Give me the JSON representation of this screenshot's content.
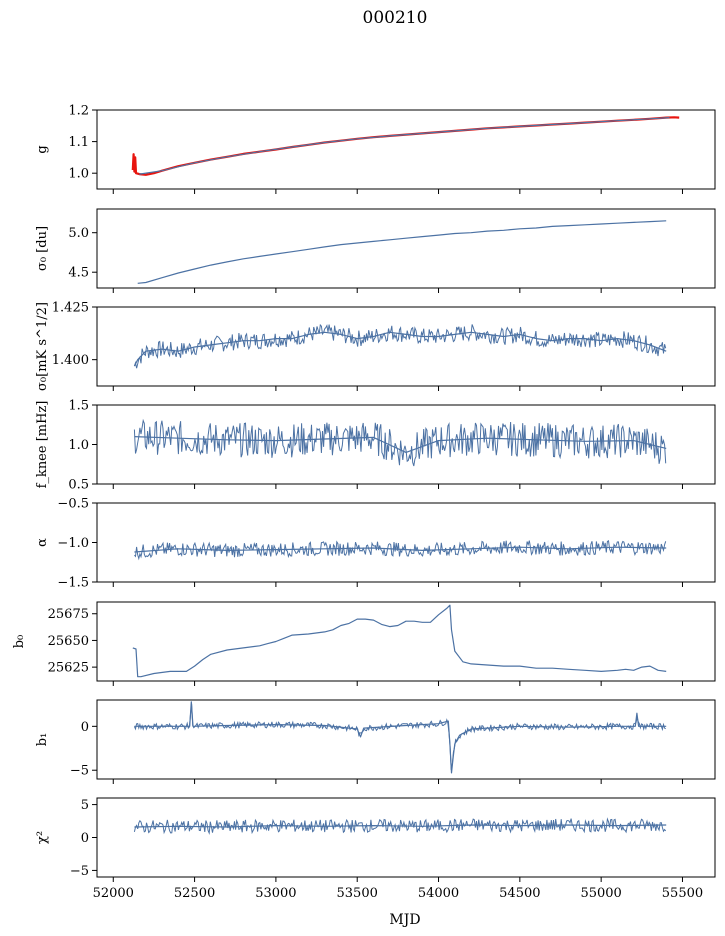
{
  "figure": {
    "title": "000210",
    "xlabel": "MJD",
    "x_ticks": [
      52000,
      52500,
      53000,
      53500,
      54000,
      54500,
      55000,
      55500
    ],
    "xlim": [
      51900,
      55700
    ]
  },
  "chart_data": [
    {
      "type": "line",
      "ylabel": "g",
      "ylim": [
        0.95,
        1.2
      ],
      "yticks": [
        1.0,
        1.1,
        1.2
      ],
      "ytick_labels": [
        "1.0",
        "1.1",
        "1.2"
      ],
      "series": [
        {
          "color": "#e8150f",
          "x": [
            52120,
            52125,
            52130,
            52135,
            52140,
            52160,
            52200,
            52250,
            52300,
            52400,
            52500,
            52600,
            52700,
            52800,
            52900,
            53000,
            53100,
            53200,
            53300,
            53400,
            53500,
            53600,
            53700,
            53800,
            53900,
            54000,
            54100,
            54200,
            54300,
            54400,
            54500,
            54600,
            54700,
            54800,
            54900,
            55000,
            55100,
            55200,
            55300,
            55400,
            55450,
            55480
          ],
          "y": [
            1.01,
            1.06,
            1.005,
            1.05,
            1.0,
            0.997,
            0.995,
            1.0,
            1.008,
            1.022,
            1.033,
            1.043,
            1.052,
            1.061,
            1.068,
            1.075,
            1.083,
            1.09,
            1.097,
            1.103,
            1.109,
            1.114,
            1.118,
            1.122,
            1.126,
            1.13,
            1.134,
            1.138,
            1.142,
            1.145,
            1.148,
            1.151,
            1.154,
            1.157,
            1.16,
            1.163,
            1.166,
            1.169,
            1.172,
            1.176,
            1.177,
            1.176
          ]
        },
        {
          "color": "#4c72a4",
          "x": [
            52160,
            52300,
            52500,
            52700,
            52900,
            53100,
            53300,
            53500,
            53700,
            53900,
            54100,
            54300,
            54500,
            54700,
            54900,
            55100,
            55300,
            55420
          ],
          "y": [
            0.997,
            1.008,
            1.033,
            1.052,
            1.068,
            1.083,
            1.097,
            1.109,
            1.118,
            1.126,
            1.134,
            1.142,
            1.148,
            1.154,
            1.16,
            1.166,
            1.172,
            1.176
          ]
        }
      ]
    },
    {
      "type": "line",
      "ylabel": "σ₀ [du]",
      "ylim": [
        4.3,
        5.3
      ],
      "yticks": [
        4.5,
        5.0
      ],
      "ytick_labels": [
        "4.5",
        "5.0"
      ],
      "series": [
        {
          "color": "#4c72a4",
          "x": [
            52150,
            52200,
            52300,
            52400,
            52500,
            52600,
            52700,
            52800,
            52900,
            53000,
            53100,
            53200,
            53300,
            53400,
            53500,
            53600,
            53700,
            53800,
            53900,
            54000,
            54100,
            54200,
            54300,
            54400,
            54500,
            54600,
            54700,
            54800,
            54900,
            55000,
            55100,
            55200,
            55300,
            55400
          ],
          "y": [
            4.36,
            4.37,
            4.43,
            4.49,
            4.54,
            4.59,
            4.63,
            4.67,
            4.7,
            4.73,
            4.76,
            4.79,
            4.82,
            4.85,
            4.87,
            4.89,
            4.91,
            4.93,
            4.95,
            4.97,
            4.99,
            5.0,
            5.02,
            5.03,
            5.05,
            5.06,
            5.08,
            5.09,
            5.1,
            5.11,
            5.12,
            5.13,
            5.14,
            5.15
          ]
        }
      ]
    },
    {
      "type": "line",
      "ylabel": "σ₀[mK s^1/2]",
      "ylim": [
        1.3875,
        1.425
      ],
      "yticks": [
        1.4,
        1.425
      ],
      "ytick_labels": [
        "1.400",
        "1.425"
      ],
      "series": [
        {
          "color": "#4c72a4",
          "x": [
            52130,
            52150,
            52200,
            52300,
            52400,
            52500,
            52600,
            52700,
            52800,
            52900,
            53000,
            53100,
            53200,
            53300,
            53400,
            53500,
            53600,
            53700,
            53800,
            53900,
            54000,
            54100,
            54200,
            54300,
            54400,
            54500,
            54600,
            54700,
            54800,
            54900,
            55000,
            55100,
            55200,
            55300,
            55400
          ],
          "y": [
            1.397,
            1.4,
            1.404,
            1.405,
            1.404,
            1.406,
            1.407,
            1.408,
            1.409,
            1.409,
            1.41,
            1.41,
            1.412,
            1.413,
            1.412,
            1.41,
            1.411,
            1.413,
            1.412,
            1.411,
            1.411,
            1.412,
            1.413,
            1.412,
            1.411,
            1.412,
            1.41,
            1.409,
            1.41,
            1.41,
            1.409,
            1.41,
            1.409,
            1.407,
            1.404
          ]
        }
      ]
    },
    {
      "type": "line",
      "ylabel": "f_knee [mHz]",
      "ylim": [
        0.5,
        1.5
      ],
      "yticks": [
        0.5,
        1.0,
        1.5
      ],
      "ytick_labels": [
        "0.5",
        "1.0",
        "1.5"
      ],
      "series": [
        {
          "color": "#4c72a4",
          "x": [
            52130,
            52400,
            52700,
            53000,
            53300,
            53600,
            53800,
            54000,
            54300,
            54600,
            54900,
            55200,
            55400
          ],
          "y": [
            1.1,
            1.08,
            1.06,
            1.05,
            1.07,
            1.09,
            0.9,
            1.05,
            1.08,
            1.06,
            1.04,
            1.05,
            0.95
          ]
        }
      ]
    },
    {
      "type": "line",
      "ylabel": "α",
      "ylim": [
        -1.5,
        -0.5
      ],
      "yticks": [
        -1.5,
        -1.0,
        -0.5
      ],
      "ytick_labels": [
        "−1.5",
        "−1.0",
        "−0.5"
      ],
      "series": [
        {
          "color": "#4c72a4",
          "x": [
            52130,
            52400,
            52700,
            53000,
            53300,
            53600,
            53900,
            54200,
            54500,
            54800,
            55100,
            55400
          ],
          "y": [
            -1.12,
            -1.08,
            -1.1,
            -1.09,
            -1.08,
            -1.07,
            -1.1,
            -1.08,
            -1.06,
            -1.08,
            -1.06,
            -1.07
          ]
        }
      ]
    },
    {
      "type": "line",
      "ylabel": "b₀",
      "ylim": [
        25612,
        25686
      ],
      "yticks": [
        25625,
        25650,
        25675
      ],
      "ytick_labels": [
        "25625",
        "25650",
        "25675"
      ],
      "series": [
        {
          "color": "#4c72a4",
          "x": [
            52120,
            52140,
            52150,
            52170,
            52250,
            52350,
            52450,
            52500,
            52550,
            52600,
            52700,
            52800,
            52900,
            52950,
            53000,
            53050,
            53100,
            53200,
            53300,
            53350,
            53400,
            53450,
            53500,
            53550,
            53600,
            53650,
            53700,
            53750,
            53800,
            53850,
            53900,
            53950,
            54000,
            54050,
            54070,
            54080,
            54100,
            54150,
            54200,
            54300,
            54400,
            54500,
            54600,
            54700,
            54800,
            54900,
            55000,
            55100,
            55150,
            55200,
            55250,
            55300,
            55350,
            55400
          ],
          "y": [
            25643,
            25642,
            25616,
            25616,
            25619,
            25621,
            25621,
            25626,
            25632,
            25637,
            25641,
            25643,
            25645,
            25647,
            25649,
            25652,
            25655,
            25656,
            25658,
            25660,
            25664,
            25666,
            25670,
            25670,
            25669,
            25665,
            25663,
            25664,
            25668,
            25668,
            25667,
            25667,
            25674,
            25680,
            25683,
            25660,
            25640,
            25630,
            25628,
            25627,
            25626,
            25626,
            25624,
            25624,
            25623,
            25622,
            25621,
            25622,
            25623,
            25622,
            25625,
            25626,
            25622,
            25621
          ]
        }
      ]
    },
    {
      "type": "line",
      "ylabel": "b₁",
      "ylim": [
        -6,
        3
      ],
      "yticks": [
        -5,
        0
      ],
      "ytick_labels": [
        "−5",
        "0"
      ],
      "series": [
        {
          "color": "#4c72a4",
          "x": [
            52130,
            52400,
            52470,
            52480,
            52490,
            52700,
            53000,
            53300,
            53500,
            53520,
            53540,
            53800,
            54000,
            54060,
            54070,
            54080,
            54090,
            54100,
            54130,
            54200,
            54500,
            54800,
            55100,
            55210,
            55220,
            55230,
            55400
          ],
          "y": [
            0.0,
            0.0,
            0.0,
            2.8,
            0.0,
            0.1,
            0.2,
            0.1,
            -0.3,
            -1.2,
            -0.2,
            0.1,
            0.3,
            0.6,
            -2.0,
            -5.3,
            -3.5,
            -2.0,
            -1.0,
            -0.3,
            0.0,
            -0.1,
            0.0,
            0.0,
            1.5,
            0.0,
            0.0
          ]
        }
      ]
    },
    {
      "type": "line",
      "ylabel": "χ²",
      "ylim": [
        -6,
        6
      ],
      "yticks": [
        -5,
        0,
        5
      ],
      "ytick_labels": [
        "−5",
        "0",
        "5"
      ],
      "series": [
        {
          "color": "#4c72a4",
          "x": [
            52130,
            52400,
            52700,
            53000,
            53300,
            53600,
            53900,
            54200,
            54500,
            54800,
            55100,
            55400
          ],
          "y": [
            1.6,
            1.7,
            1.6,
            1.8,
            1.7,
            1.8,
            1.7,
            1.9,
            1.8,
            1.9,
            1.8,
            1.9
          ]
        }
      ]
    }
  ]
}
